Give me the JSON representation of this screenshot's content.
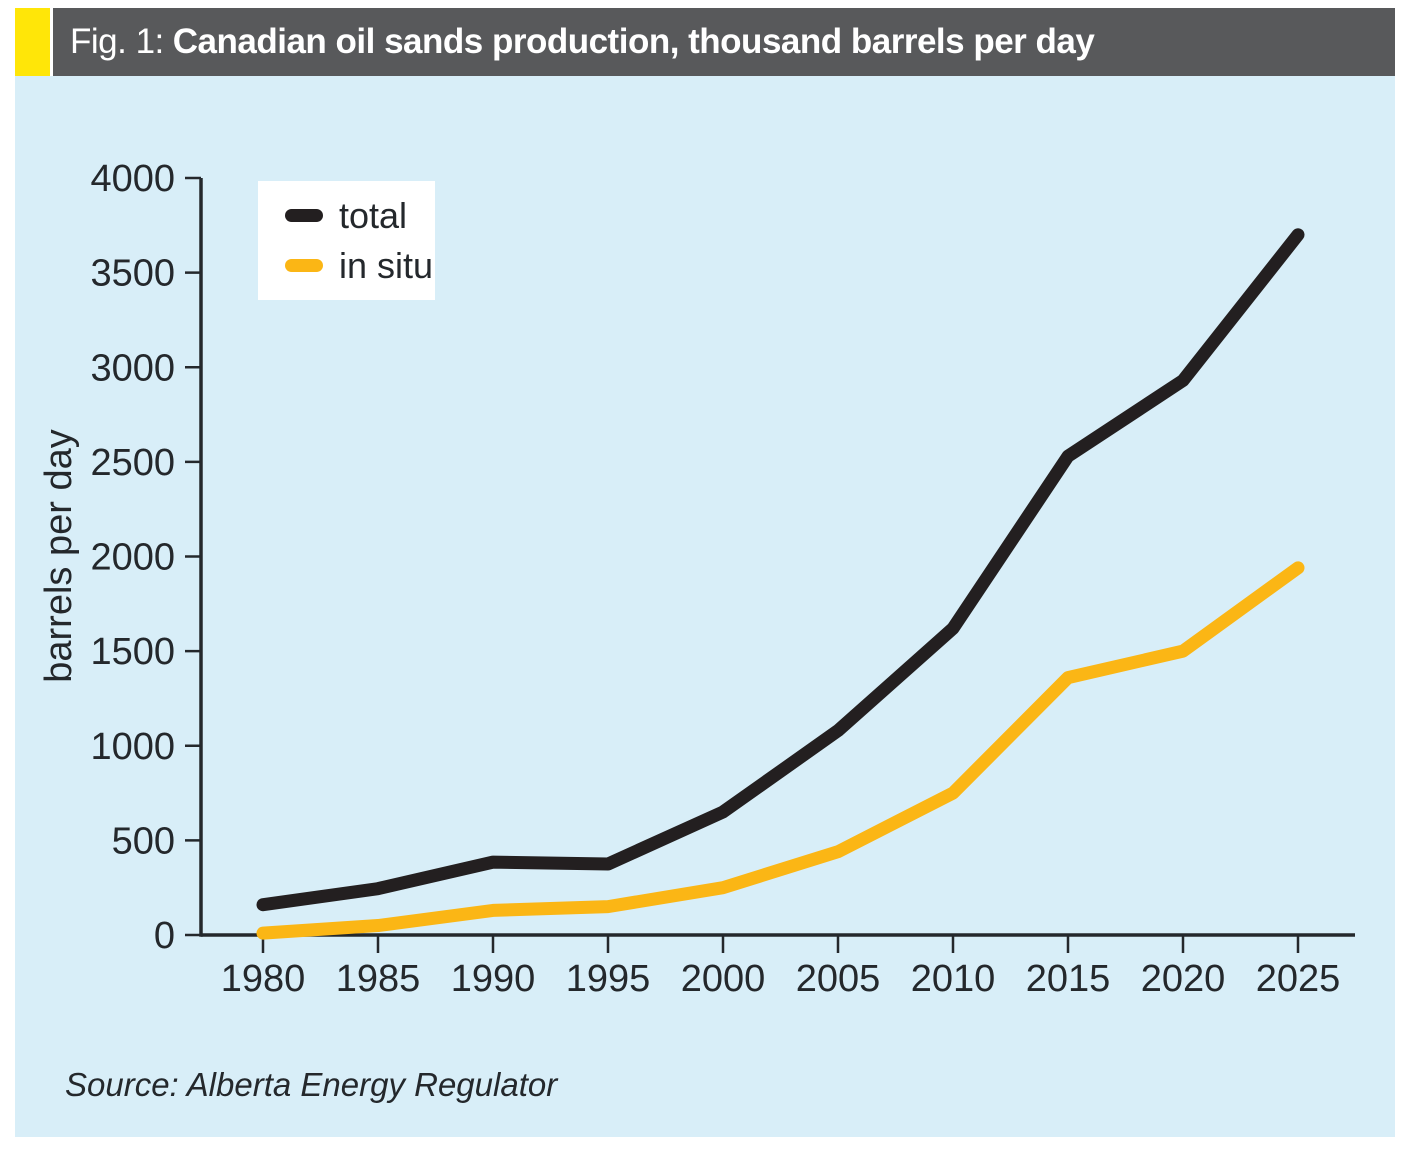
{
  "header": {
    "prefix": "Fig. 1:",
    "title": "Canadian oil sands production, thousand barrels per day"
  },
  "source_note": "Source: Alberta Energy Regulator",
  "colors": {
    "accent_yellow": "#ffe608",
    "titlebar_bg": "#58595b",
    "panel_bg": "#d8eef8",
    "axis": "#24282c",
    "tick_text": "#24282c",
    "legend_bg": "#ffffff"
  },
  "chart_data": {
    "type": "line",
    "title": "Canadian oil sands production, thousand barrels per day",
    "x": [
      1980,
      1985,
      1990,
      1995,
      2000,
      2005,
      2010,
      2015,
      2020,
      2025
    ],
    "xlabel": "",
    "ylabel": "barrels per day",
    "ylim": [
      0,
      4000
    ],
    "ytick_step": 500,
    "grid": false,
    "legend_position": "top-left",
    "series": [
      {
        "name": "total",
        "color": "#231f20",
        "values": [
          160,
          245,
          385,
          375,
          650,
          1080,
          1620,
          2530,
          2930,
          3700
        ]
      },
      {
        "name": "in situ",
        "color": "#fbb615",
        "values": [
          10,
          50,
          130,
          150,
          250,
          440,
          750,
          1360,
          1500,
          1940
        ]
      }
    ]
  }
}
